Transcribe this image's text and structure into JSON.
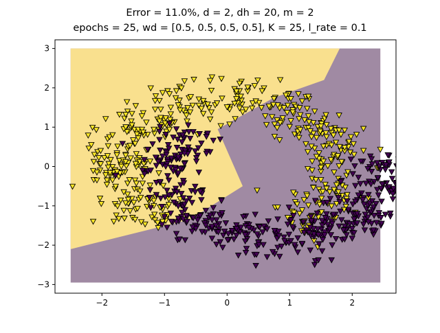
{
  "chart_data": {
    "type": "scatter",
    "title_lines": [
      "Error = 11.0%, d = 2, dh = 20, m = 2",
      "epochs = 25, wd = [0.5, 0.5, 0.5, 0.5], K = 25, l_rate = 0.1"
    ],
    "xlabel": "",
    "ylabel": "",
    "xlim": [
      -2.75,
      2.7
    ],
    "ylim": [
      -3.22,
      3.22
    ],
    "xticks": [
      -2,
      -1,
      0,
      1,
      2
    ],
    "yticks": [
      -3,
      -2,
      -1,
      0,
      1,
      2,
      3
    ],
    "grid": false,
    "marker": "down-triangle",
    "colors": {
      "class_0": "#440154",
      "class_1": "#fde725",
      "region_0": "#a08aa3",
      "region_1": "#f9e08e",
      "edge": "#000000"
    },
    "decision_region_extent": {
      "x": [
        -2.5,
        2.45
      ],
      "y": [
        -2.95,
        3.0
      ]
    },
    "class_1_region_polygon": [
      [
        -2.5,
        3.0
      ],
      [
        1.8,
        3.0
      ],
      [
        1.55,
        2.2
      ],
      [
        0.75,
        1.75
      ],
      [
        -0.15,
        0.95
      ],
      [
        0.25,
        -0.5
      ],
      [
        -0.6,
        -1.35
      ],
      [
        -2.5,
        -2.1
      ]
    ],
    "series": [
      {
        "class": 1,
        "description_note": "",
        "generator": {
          "shape": "upper-half-ring",
          "center": [
            0.0,
            0.0
          ],
          "radius": 1.75,
          "angle_deg": [
            -55,
            235
          ],
          "count": 500
        },
        "points": []
      },
      {
        "class": 0,
        "generator": {
          "shape": "lower-half-ring",
          "center": [
            0.85,
            -0.1
          ],
          "radius": 1.75,
          "angle_deg": [
            -220,
            15
          ],
          "count": 500
        },
        "points": []
      }
    ]
  }
}
